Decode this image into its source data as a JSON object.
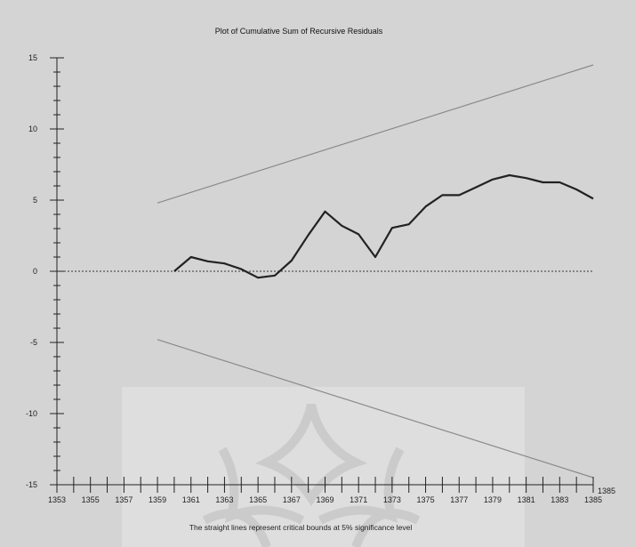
{
  "chart_data": {
    "type": "line",
    "title": "Plot of Cumulative Sum of Recursive Residuals",
    "note": "The straight lines represent critical bounds at 5% significance level",
    "xlabel": "",
    "ylabel": "",
    "xlim": [
      1353,
      1385
    ],
    "ylim": [
      -15,
      15
    ],
    "x_ticks": [
      1353,
      1355,
      1357,
      1359,
      1361,
      1363,
      1365,
      1367,
      1369,
      1371,
      1373,
      1375,
      1377,
      1379,
      1381,
      1383,
      1385
    ],
    "x_end_label": "1385",
    "y_ticks": [
      15,
      10,
      5,
      0,
      -5,
      -10,
      -15
    ],
    "zero_line": "dotted",
    "series": [
      {
        "role": "cusum",
        "color": "#222222",
        "x": [
          1360,
          1361,
          1362,
          1363,
          1364,
          1365,
          1366,
          1367,
          1368,
          1369,
          1370,
          1371,
          1372,
          1373,
          1374,
          1375,
          1376,
          1377,
          1378,
          1379,
          1380,
          1381,
          1382,
          1383,
          1384,
          1385
        ],
        "values": [
          0.0,
          1.0,
          0.7,
          0.55,
          0.15,
          -0.45,
          -0.3,
          0.75,
          2.55,
          4.2,
          3.2,
          2.6,
          1.0,
          3.05,
          3.3,
          4.55,
          5.35,
          5.35,
          5.9,
          6.45,
          6.75,
          6.55,
          6.25,
          6.25,
          5.75,
          5.1
        ]
      },
      {
        "role": "upper-bound",
        "color": "#8a8a8a",
        "x": [
          1359,
          1385
        ],
        "values": [
          4.8,
          14.5
        ]
      },
      {
        "role": "lower-bound",
        "color": "#8a8a8a",
        "x": [
          1359,
          1385
        ],
        "values": [
          -4.8,
          -14.5
        ]
      }
    ],
    "grid": false
  }
}
